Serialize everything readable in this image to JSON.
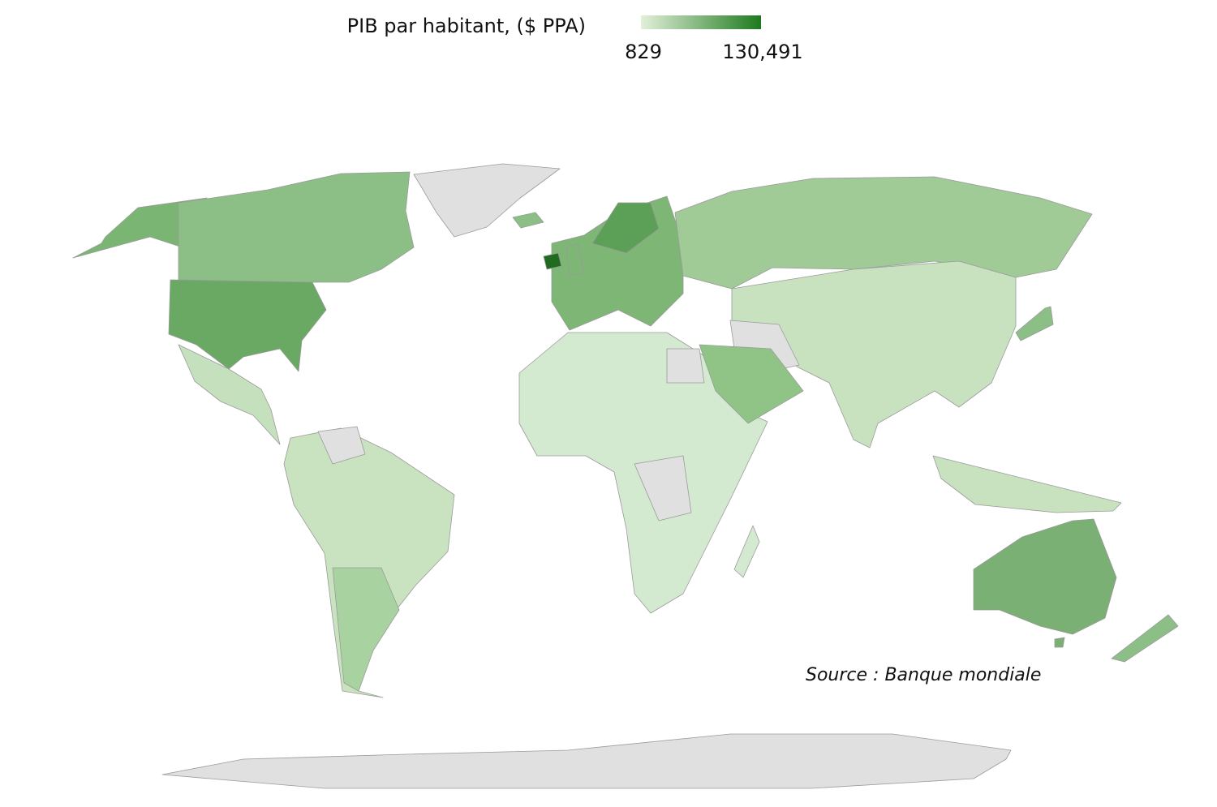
{
  "legend": {
    "title": "PIB par habitant, ($ PPA)",
    "min": 829,
    "max": {
      "value": 130491,
      "label": "130,491"
    },
    "color_low": "#e2f0d9",
    "color_high": "#1e7a1e"
  },
  "source": "Source : Banque mondiale"
}
